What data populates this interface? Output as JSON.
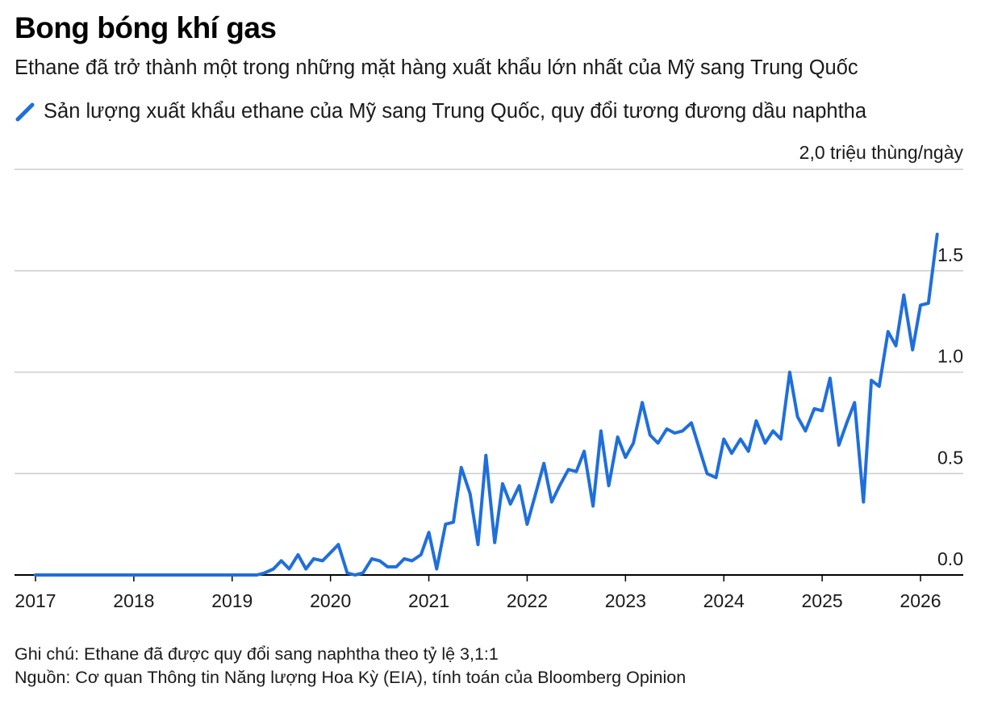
{
  "title": "Bong bóng khí gas",
  "subtitle": "Ethane đã trở thành một trong những mặt hàng xuất khẩu lớn nhất của Mỹ sang Trung Quốc",
  "note": "Ghi chú: Ethane đã được quy đổi sang naphtha theo tỷ lệ 3,1:1",
  "source": "Nguồn: Cơ quan Thông tin Năng lượng Hoa Kỳ (EIA), tính toán của Bloomberg Opinion",
  "colors": {
    "series": "#1f6fdb",
    "grid": "#cccccc",
    "axis": "#000000"
  },
  "chart_data": {
    "type": "line",
    "title": "Bong bóng khí gas",
    "subtitle": "Ethane đã trở thành một trong những mặt hàng xuất khẩu lớn nhất của Mỹ sang Trung Quốc",
    "unit_label": "2,0 triệu thùng/ngày",
    "ylim": [
      0,
      2.0
    ],
    "xlim": [
      2017.0,
      2026.3
    ],
    "grid": true,
    "legend_position": "top-left",
    "y_ticks": [
      {
        "value": 0.0,
        "label": "0.0"
      },
      {
        "value": 0.5,
        "label": "0.5"
      },
      {
        "value": 1.0,
        "label": "1.0"
      },
      {
        "value": 1.5,
        "label": "1.5"
      }
    ],
    "x_ticks": [
      {
        "value": 2017,
        "label": "2017"
      },
      {
        "value": 2018,
        "label": "2018"
      },
      {
        "value": 2019,
        "label": "2019"
      },
      {
        "value": 2020,
        "label": "2020"
      },
      {
        "value": 2021,
        "label": "2021"
      },
      {
        "value": 2022,
        "label": "2022"
      },
      {
        "value": 2023,
        "label": "2023"
      },
      {
        "value": 2024,
        "label": "2024"
      },
      {
        "value": 2025,
        "label": "2025"
      },
      {
        "value": 2026,
        "label": "2026"
      }
    ],
    "series": [
      {
        "name": "Sản lượng xuất khẩu ethane của Mỹ sang Trung Quốc, quy đổi tương đương dầu naphtha",
        "points": [
          [
            2017.0,
            0.0
          ],
          [
            2019.25,
            0.0
          ],
          [
            2019.33,
            0.01
          ],
          [
            2019.42,
            0.03
          ],
          [
            2019.5,
            0.07
          ],
          [
            2019.58,
            0.03
          ],
          [
            2019.67,
            0.1
          ],
          [
            2019.75,
            0.03
          ],
          [
            2019.83,
            0.08
          ],
          [
            2019.92,
            0.07
          ],
          [
            2020.0,
            0.11
          ],
          [
            2020.08,
            0.15
          ],
          [
            2020.17,
            0.01
          ],
          [
            2020.25,
            0.0
          ],
          [
            2020.33,
            0.01
          ],
          [
            2020.42,
            0.08
          ],
          [
            2020.5,
            0.07
          ],
          [
            2020.58,
            0.04
          ],
          [
            2020.67,
            0.04
          ],
          [
            2020.75,
            0.08
          ],
          [
            2020.83,
            0.07
          ],
          [
            2020.92,
            0.1
          ],
          [
            2021.0,
            0.21
          ],
          [
            2021.08,
            0.03
          ],
          [
            2021.17,
            0.25
          ],
          [
            2021.25,
            0.26
          ],
          [
            2021.33,
            0.53
          ],
          [
            2021.42,
            0.4
          ],
          [
            2021.5,
            0.15
          ],
          [
            2021.58,
            0.59
          ],
          [
            2021.67,
            0.16
          ],
          [
            2021.75,
            0.45
          ],
          [
            2021.83,
            0.35
          ],
          [
            2021.92,
            0.44
          ],
          [
            2022.0,
            0.25
          ],
          [
            2022.08,
            0.39
          ],
          [
            2022.17,
            0.55
          ],
          [
            2022.25,
            0.36
          ],
          [
            2022.33,
            0.44
          ],
          [
            2022.42,
            0.52
          ],
          [
            2022.5,
            0.51
          ],
          [
            2022.58,
            0.61
          ],
          [
            2022.67,
            0.34
          ],
          [
            2022.75,
            0.71
          ],
          [
            2022.83,
            0.44
          ],
          [
            2022.92,
            0.68
          ],
          [
            2023.0,
            0.58
          ],
          [
            2023.08,
            0.65
          ],
          [
            2023.17,
            0.85
          ],
          [
            2023.25,
            0.69
          ],
          [
            2023.33,
            0.65
          ],
          [
            2023.42,
            0.72
          ],
          [
            2023.5,
            0.7
          ],
          [
            2023.58,
            0.71
          ],
          [
            2023.67,
            0.75
          ],
          [
            2023.83,
            0.5
          ],
          [
            2023.92,
            0.48
          ],
          [
            2024.0,
            0.67
          ],
          [
            2024.08,
            0.6
          ],
          [
            2024.17,
            0.67
          ],
          [
            2024.25,
            0.61
          ],
          [
            2024.33,
            0.76
          ],
          [
            2024.42,
            0.65
          ],
          [
            2024.5,
            0.71
          ],
          [
            2024.58,
            0.67
          ],
          [
            2024.67,
            1.0
          ],
          [
            2024.75,
            0.78
          ],
          [
            2024.83,
            0.71
          ],
          [
            2024.92,
            0.82
          ],
          [
            2025.0,
            0.81
          ],
          [
            2025.08,
            0.97
          ],
          [
            2025.17,
            0.64
          ],
          [
            2025.25,
            0.75
          ],
          [
            2025.33,
            0.85
          ],
          [
            2025.42,
            0.36
          ],
          [
            2025.5,
            0.96
          ],
          [
            2025.58,
            0.93
          ],
          [
            2025.67,
            1.2
          ],
          [
            2025.75,
            1.13
          ],
          [
            2025.83,
            1.38
          ],
          [
            2025.92,
            1.11
          ],
          [
            2026.0,
            1.33
          ],
          [
            2026.08,
            1.34
          ],
          [
            2026.17,
            1.68
          ]
        ]
      }
    ]
  }
}
